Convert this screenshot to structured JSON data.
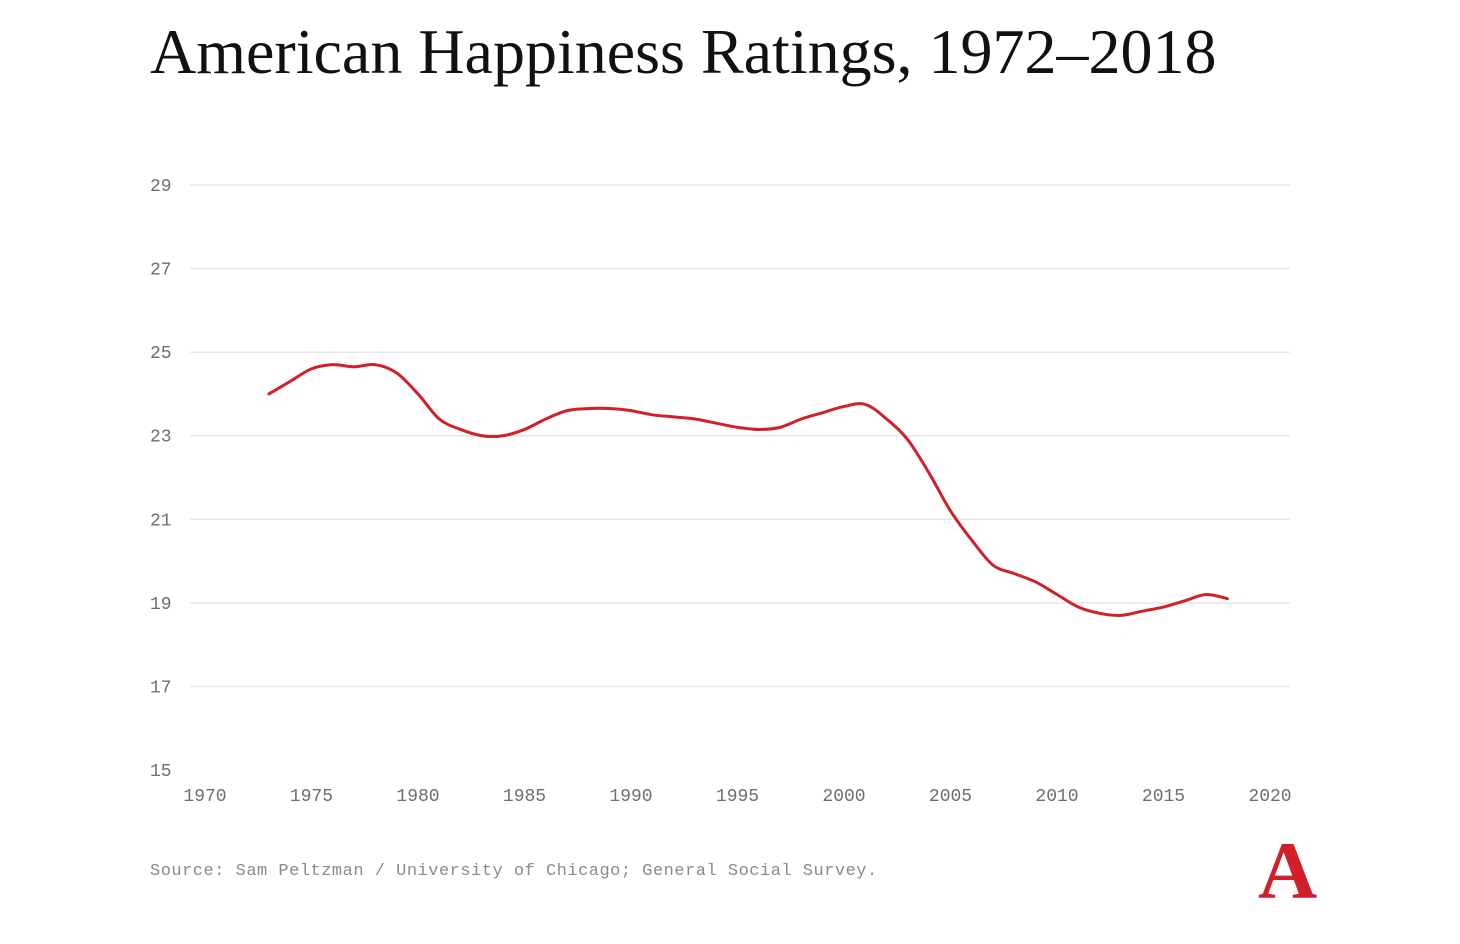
{
  "title": "American Happiness Ratings, 1972–2018",
  "source": "Source: Sam Peltzman / University of Chicago; General Social Survey.",
  "logo": "A",
  "colors": {
    "line": "#d0202a",
    "grid": "#e6e6e6",
    "tick_text": "#6e6e6e",
    "title": "#111111",
    "logo": "#d0202a"
  },
  "chart_data": {
    "type": "line",
    "title": "American Happiness Ratings, 1972–2018",
    "xlabel": "",
    "ylabel": "",
    "xlim": [
      1970,
      2020
    ],
    "ylim": [
      15,
      29
    ],
    "x_ticks": [
      1970,
      1975,
      1980,
      1985,
      1990,
      1995,
      2000,
      2005,
      2010,
      2015,
      2020
    ],
    "y_ticks": [
      15,
      17,
      19,
      21,
      23,
      25,
      27,
      29
    ],
    "grid": "horizontal",
    "legend": "none",
    "series": [
      {
        "x": [
          1973,
          1974,
          1975,
          1976,
          1977,
          1978,
          1979,
          1980,
          1981,
          1982,
          1983,
          1984,
          1985,
          1986,
          1987,
          1988,
          1989,
          1990,
          1991,
          1992,
          1993,
          1994,
          1995,
          1996,
          1997,
          1998,
          1999,
          2000,
          2001,
          2002,
          2003,
          2004,
          2005,
          2006,
          2007,
          2008,
          2009,
          2010,
          2011,
          2012,
          2013,
          2014,
          2015,
          2016,
          2017,
          2018
        ],
        "values": [
          24.0,
          24.3,
          24.6,
          24.7,
          24.65,
          24.7,
          24.5,
          24.0,
          23.4,
          23.15,
          23.0,
          23.0,
          23.15,
          23.4,
          23.6,
          23.65,
          23.65,
          23.6,
          23.5,
          23.45,
          23.4,
          23.3,
          23.2,
          23.15,
          23.2,
          23.4,
          23.55,
          23.7,
          23.75,
          23.4,
          22.9,
          22.1,
          21.2,
          20.5,
          19.9,
          19.7,
          19.5,
          19.2,
          18.9,
          18.75,
          18.7,
          18.8,
          18.9,
          19.05,
          19.2,
          19.1
        ]
      }
    ]
  }
}
